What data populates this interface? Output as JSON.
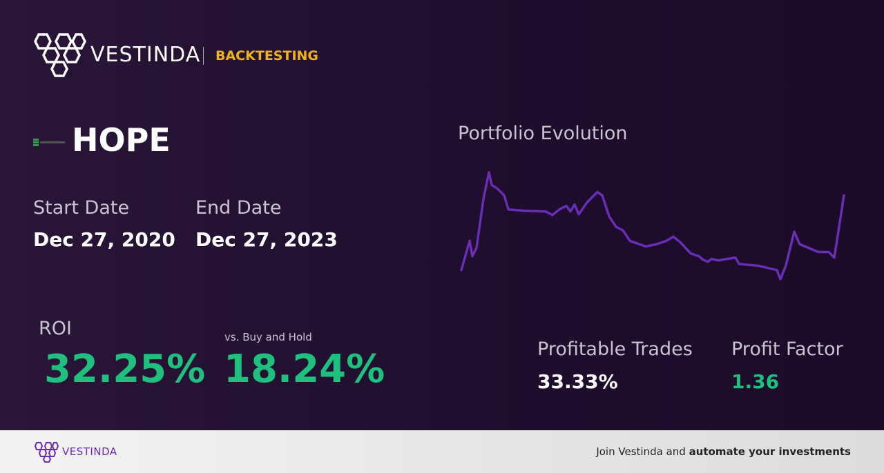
{
  "header": {
    "brand": "VESTINDA",
    "section": "BACKTESTING"
  },
  "ticker": "HOPE",
  "dates": {
    "start_label": "Start Date",
    "start": "Dec 27, 2020",
    "end_label": "End Date",
    "end": "Dec 27, 2023"
  },
  "metrics": {
    "roi_label": "ROI",
    "roi": "32.25%",
    "vs_label": "vs. Buy and Hold",
    "vs": "18.24%",
    "profitable_label": "Profitable Trades",
    "profitable": "33.33%",
    "factor_label": "Profit Factor",
    "factor": "1.36"
  },
  "chart_data": {
    "type": "line",
    "title": "Portfolio Evolution",
    "color": "#6a2db5",
    "x": [
      0,
      12,
      16,
      22,
      32,
      40,
      44,
      52,
      62,
      68,
      92,
      122,
      132,
      142,
      152,
      158,
      164,
      170,
      182,
      197,
      204,
      214,
      224,
      234,
      244,
      267,
      282,
      297,
      307,
      317,
      332,
      344,
      350,
      357,
      362,
      372,
      397,
      402,
      432,
      457,
      462,
      470,
      482,
      490,
      517,
      532,
      540,
      547,
      554
    ],
    "values": [
      8,
      50,
      28,
      40,
      110,
      148,
      130,
      125,
      115,
      95,
      93,
      92,
      87,
      95,
      100,
      92,
      102,
      88,
      105,
      120,
      115,
      85,
      70,
      65,
      50,
      42,
      45,
      50,
      56,
      48,
      32,
      28,
      23,
      20,
      24,
      22,
      26,
      17,
      14,
      8,
      -5,
      15,
      63,
      45,
      34,
      34,
      26,
      70,
      115
    ]
  },
  "footer": {
    "brand": "VESTINDA",
    "text": "Join Vestinda and",
    "bold": "automate your investments"
  }
}
